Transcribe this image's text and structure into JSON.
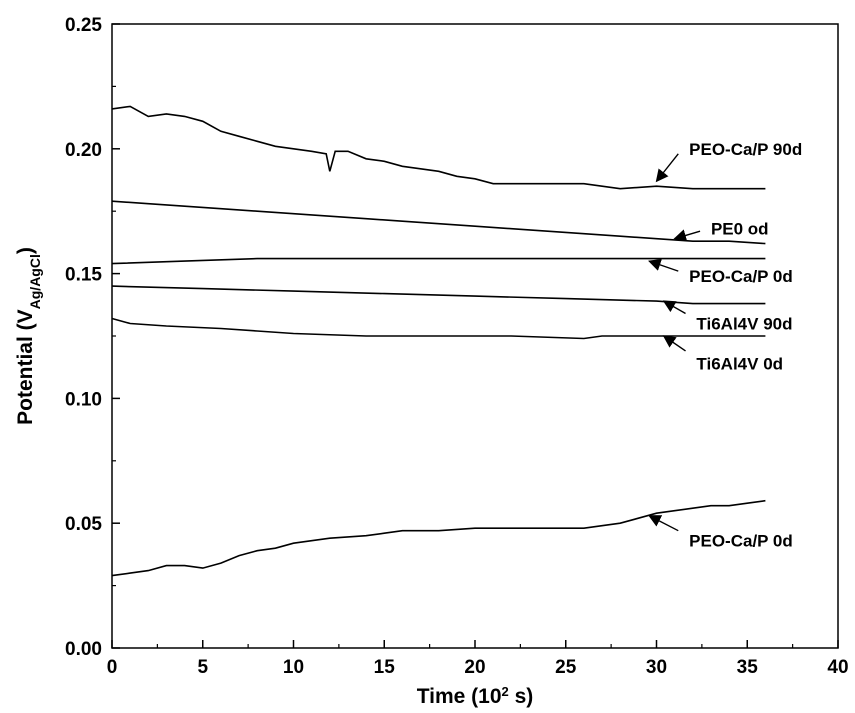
{
  "chart_data": {
    "type": "line",
    "xlabel_main": "Time (10",
    "xlabel_sup": "2",
    "xlabel_tail": " s)",
    "ylabel_main": "Potential (V",
    "ylabel_sub": "Ag/AgCl",
    "ylabel_tail": ")",
    "xlim": [
      0,
      40
    ],
    "ylim": [
      0,
      0.25
    ],
    "x_ticks": [
      "0",
      "5",
      "10",
      "15",
      "20",
      "25",
      "30",
      "35",
      "40"
    ],
    "y_ticks": [
      "0.00",
      "0.05",
      "0.10",
      "0.15",
      "0.20",
      "0.25"
    ],
    "grid": false,
    "legend": "none",
    "series": [
      {
        "id": "peo-cap-90d",
        "points": [
          [
            0,
            0.216
          ],
          [
            1,
            0.217
          ],
          [
            2,
            0.213
          ],
          [
            3,
            0.214
          ],
          [
            4,
            0.213
          ],
          [
            5,
            0.211
          ],
          [
            6,
            0.207
          ],
          [
            7,
            0.205
          ],
          [
            8,
            0.203
          ],
          [
            9,
            0.201
          ],
          [
            10,
            0.2
          ],
          [
            11,
            0.199
          ],
          [
            11.8,
            0.198
          ],
          [
            12,
            0.191
          ],
          [
            12.3,
            0.199
          ],
          [
            13,
            0.199
          ],
          [
            14,
            0.196
          ],
          [
            15,
            0.195
          ],
          [
            16,
            0.193
          ],
          [
            17,
            0.192
          ],
          [
            18,
            0.191
          ],
          [
            19,
            0.189
          ],
          [
            20,
            0.188
          ],
          [
            21,
            0.186
          ],
          [
            22,
            0.186
          ],
          [
            24,
            0.186
          ],
          [
            26,
            0.186
          ],
          [
            28,
            0.184
          ],
          [
            30,
            0.185
          ],
          [
            32,
            0.184
          ],
          [
            34,
            0.184
          ],
          [
            36,
            0.184
          ]
        ]
      },
      {
        "id": "pe0-od",
        "points": [
          [
            0,
            0.179
          ],
          [
            2,
            0.178
          ],
          [
            4,
            0.177
          ],
          [
            6,
            0.176
          ],
          [
            8,
            0.175
          ],
          [
            10,
            0.174
          ],
          [
            12,
            0.173
          ],
          [
            14,
            0.172
          ],
          [
            16,
            0.171
          ],
          [
            18,
            0.17
          ],
          [
            20,
            0.169
          ],
          [
            22,
            0.168
          ],
          [
            24,
            0.167
          ],
          [
            26,
            0.166
          ],
          [
            28,
            0.165
          ],
          [
            30,
            0.164
          ],
          [
            32,
            0.163
          ],
          [
            34,
            0.163
          ],
          [
            36,
            0.162
          ]
        ]
      },
      {
        "id": "peo-cap-0d-upper",
        "points": [
          [
            0,
            0.154
          ],
          [
            4,
            0.155
          ],
          [
            8,
            0.156
          ],
          [
            12,
            0.156
          ],
          [
            16,
            0.156
          ],
          [
            20,
            0.156
          ],
          [
            24,
            0.156
          ],
          [
            28,
            0.156
          ],
          [
            32,
            0.156
          ],
          [
            36,
            0.156
          ]
        ]
      },
      {
        "id": "ti6al4v-90d",
        "points": [
          [
            0,
            0.145
          ],
          [
            5,
            0.144
          ],
          [
            10,
            0.143
          ],
          [
            15,
            0.142
          ],
          [
            20,
            0.141
          ],
          [
            25,
            0.14
          ],
          [
            30,
            0.139
          ],
          [
            32,
            0.138
          ],
          [
            36,
            0.138
          ]
        ]
      },
      {
        "id": "ti6al4v-0d",
        "points": [
          [
            0,
            0.132
          ],
          [
            1,
            0.13
          ],
          [
            3,
            0.129
          ],
          [
            6,
            0.128
          ],
          [
            8,
            0.127
          ],
          [
            10,
            0.126
          ],
          [
            14,
            0.125
          ],
          [
            18,
            0.125
          ],
          [
            22,
            0.125
          ],
          [
            26,
            0.124
          ],
          [
            27,
            0.125
          ],
          [
            30,
            0.125
          ],
          [
            32,
            0.125
          ],
          [
            36,
            0.125
          ]
        ]
      },
      {
        "id": "peo-cap-0d-lower",
        "points": [
          [
            0,
            0.029
          ],
          [
            1,
            0.03
          ],
          [
            2,
            0.031
          ],
          [
            3,
            0.033
          ],
          [
            4,
            0.033
          ],
          [
            5,
            0.032
          ],
          [
            6,
            0.034
          ],
          [
            7,
            0.037
          ],
          [
            8,
            0.039
          ],
          [
            9,
            0.04
          ],
          [
            10,
            0.042
          ],
          [
            11,
            0.043
          ],
          [
            12,
            0.044
          ],
          [
            14,
            0.045
          ],
          [
            15,
            0.046
          ],
          [
            16,
            0.047
          ],
          [
            18,
            0.047
          ],
          [
            20,
            0.048
          ],
          [
            22,
            0.048
          ],
          [
            24,
            0.048
          ],
          [
            26,
            0.048
          ],
          [
            27,
            0.049
          ],
          [
            28,
            0.05
          ],
          [
            29,
            0.052
          ],
          [
            30,
            0.054
          ],
          [
            31,
            0.055
          ],
          [
            32,
            0.056
          ],
          [
            33,
            0.057
          ],
          [
            34,
            0.057
          ],
          [
            35,
            0.058
          ],
          [
            36,
            0.059
          ]
        ]
      }
    ],
    "annotations": [
      {
        "id": "peo-cap-90d",
        "text": "PEO-Ca/P 90d",
        "at": [
          31.8,
          0.2
        ],
        "arrow_from": [
          31.2,
          0.198
        ],
        "arrow_to": [
          30.0,
          0.187
        ]
      },
      {
        "id": "pe0-od",
        "text": "PE0 od",
        "at": [
          33.0,
          0.168
        ],
        "arrow_from": [
          32.4,
          0.167
        ],
        "arrow_to": [
          31.0,
          0.164
        ]
      },
      {
        "id": "peo-cap-0d-upper",
        "text": "PEO-Ca/P 0d",
        "at": [
          31.8,
          0.149
        ],
        "arrow_from": [
          31.2,
          0.151
        ],
        "arrow_to": [
          29.6,
          0.155
        ]
      },
      {
        "id": "ti6al4v-90d",
        "text": "Ti6Al4V 90d",
        "at": [
          32.2,
          0.13
        ],
        "arrow_from": [
          31.6,
          0.134
        ],
        "arrow_to": [
          30.4,
          0.139
        ]
      },
      {
        "id": "ti6al4v-0d",
        "text": "Ti6Al4V 0d",
        "at": [
          32.2,
          0.114
        ],
        "arrow_from": [
          31.6,
          0.119
        ],
        "arrow_to": [
          30.4,
          0.125
        ]
      },
      {
        "id": "peo-cap-0d-lower",
        "text": "PEO-Ca/P 0d",
        "at": [
          31.8,
          0.043
        ],
        "arrow_from": [
          31.2,
          0.047
        ],
        "arrow_to": [
          29.6,
          0.053
        ]
      }
    ]
  }
}
